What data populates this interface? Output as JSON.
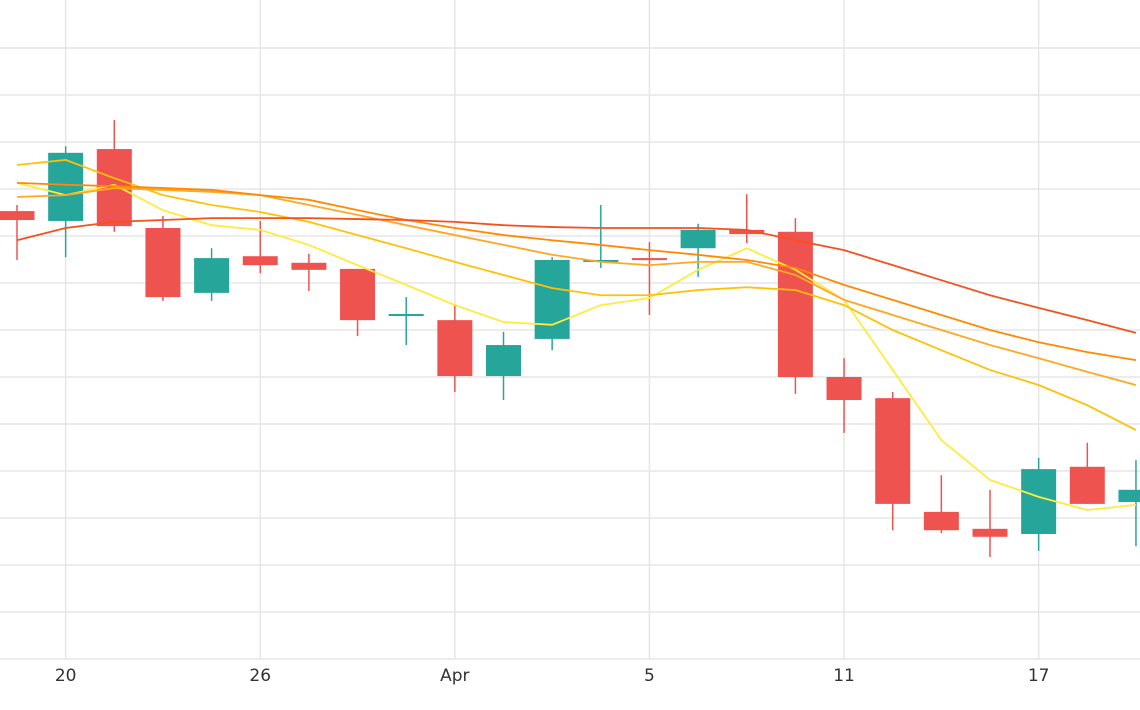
{
  "chart_data": {
    "type": "candlestick",
    "categories": [
      null,
      "20",
      null,
      null,
      null,
      "26",
      null,
      null,
      null,
      "Apr",
      null,
      null,
      null,
      "5",
      null,
      null,
      null,
      "11",
      null,
      null,
      null,
      "17",
      null,
      null
    ],
    "open": [
      9.53,
      9.32,
      10.85,
      9.17,
      7.79,
      8.57,
      8.43,
      8.3,
      7.32,
      7.21,
      6.02,
      6.81,
      8.47,
      8.53,
      8.74,
      9.13,
      9.09,
      6.0,
      5.55,
      3.13,
      2.77,
      2.66,
      4.09,
      3.34
    ],
    "high": [
      9.66,
      10.91,
      11.47,
      9.43,
      8.74,
      9.32,
      8.62,
      8.3,
      7.7,
      7.53,
      6.96,
      8.55,
      9.66,
      8.87,
      9.26,
      9.89,
      9.38,
      6.4,
      5.68,
      3.91,
      3.6,
      4.28,
      4.6,
      4.23
    ],
    "low": [
      8.49,
      8.55,
      9.09,
      7.62,
      7.62,
      8.21,
      7.83,
      6.87,
      6.68,
      5.68,
      5.51,
      6.57,
      8.32,
      7.32,
      8.13,
      8.85,
      5.64,
      4.81,
      2.74,
      2.68,
      2.17,
      2.3,
      3.3,
      2.4
    ],
    "close": [
      9.34,
      10.77,
      9.21,
      7.7,
      8.53,
      8.38,
      8.28,
      7.21,
      7.34,
      6.02,
      6.68,
      8.49,
      8.49,
      8.51,
      9.13,
      9.04,
      6.0,
      5.51,
      3.3,
      2.74,
      2.6,
      4.04,
      3.3,
      3.6
    ],
    "up_color": "#26a69a",
    "down_color": "#ef5350",
    "lines": [
      {
        "color": "#ffeb3b",
        "values": [
          10.13,
          9.87,
          10.09,
          9.55,
          9.23,
          9.13,
          8.81,
          8.38,
          7.96,
          7.53,
          7.17,
          7.11,
          7.53,
          7.68,
          8.28,
          8.74,
          8.28,
          7.64,
          6.15,
          4.66,
          3.81,
          3.45,
          3.17,
          3.28
        ]
      },
      {
        "color": "#ffc107",
        "values": [
          10.51,
          10.62,
          10.23,
          9.87,
          9.66,
          9.51,
          9.3,
          9.02,
          8.74,
          8.45,
          8.17,
          7.89,
          7.74,
          7.74,
          7.85,
          7.91,
          7.85,
          7.53,
          7.0,
          6.57,
          6.15,
          5.83,
          5.4,
          4.87
        ]
      },
      {
        "color": "#ffa726",
        "values": [
          9.83,
          9.87,
          10.02,
          9.98,
          9.94,
          9.87,
          9.66,
          9.45,
          9.23,
          9.02,
          8.81,
          8.6,
          8.45,
          8.38,
          8.45,
          8.45,
          8.17,
          7.64,
          7.32,
          7.0,
          6.68,
          6.4,
          6.11,
          5.83
        ]
      },
      {
        "color": "#ff8a00",
        "values": [
          10.13,
          10.09,
          10.06,
          10.02,
          9.98,
          9.87,
          9.77,
          9.55,
          9.34,
          9.17,
          9.02,
          8.91,
          8.81,
          8.7,
          8.6,
          8.49,
          8.32,
          7.96,
          7.64,
          7.32,
          7.0,
          6.74,
          6.53,
          6.36
        ]
      },
      {
        "color": "#f4511e",
        "values": [
          8.91,
          9.17,
          9.3,
          9.34,
          9.38,
          9.38,
          9.38,
          9.36,
          9.34,
          9.3,
          9.23,
          9.19,
          9.17,
          9.17,
          9.17,
          9.13,
          8.91,
          8.7,
          8.38,
          8.06,
          7.74,
          7.47,
          7.21,
          6.94
        ]
      }
    ],
    "ylim": [
      0,
      14
    ],
    "yticks": [
      1,
      2,
      3,
      4,
      5,
      6,
      7,
      8,
      9,
      10,
      11,
      12,
      13
    ],
    "grid": true
  }
}
